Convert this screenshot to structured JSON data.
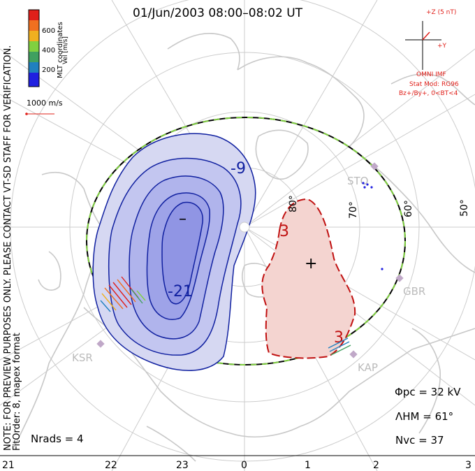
{
  "title": "01/Jun/2003 08:00–08:02 UT",
  "side_note": "NOTE: FOR PREVIEW PURPOSES ONLY. PLEASE CONTACT VT-SD STAFF FOR VERIFICATION.",
  "fit_order": "FitOrder: 8, mapex format",
  "coords_label": "MLT coordinates",
  "colorbar": {
    "label": "Vel [m/s]",
    "ticks": [
      "600",
      "400",
      "200"
    ],
    "colors": [
      "#e0201a",
      "#f07020",
      "#f0b020",
      "#80d040",
      "#40a060",
      "#2080c0",
      "#2020e0"
    ]
  },
  "vector_scale": "1000 m/s",
  "imf": {
    "z_label": "+Z (5 nT)",
    "y_label": "+Y",
    "title": "OMNI IMF",
    "stat_mod": "Stat Mod: RG96",
    "condition": "Bz+/By+, 0<BT<4"
  },
  "latitude_labels": [
    "80°",
    "70°",
    "60°",
    "50°"
  ],
  "mlt_labels": [
    "21",
    "22",
    "23",
    "0",
    "1",
    "2",
    "3"
  ],
  "sites": [
    "STO",
    "GBR",
    "KAP",
    "KSR"
  ],
  "contours": {
    "negative_labels": [
      "-9",
      "-21"
    ],
    "positive_labels": [
      "3",
      "3"
    ],
    "minus_marker": "–",
    "plus_marker": "+"
  },
  "stats": {
    "phi_pc": "Φpc = 32 kV",
    "lambda_hm": "ΛHM = 61°",
    "n_vc": "Nvc = 37",
    "n_rads": "Nrads = 4"
  },
  "colors": {
    "negative_fill": "#d6d8f2",
    "negative_fill_mid": "#b8bcee",
    "negative_fill_core": "#9aa0e8",
    "negative_line": "#1020a0",
    "positive_fill": "#f4d4d0",
    "positive_line": "#c01010",
    "boundary_green": "#80d040",
    "coastline": "#c8c8c8",
    "grid": "#c8c8c8"
  }
}
